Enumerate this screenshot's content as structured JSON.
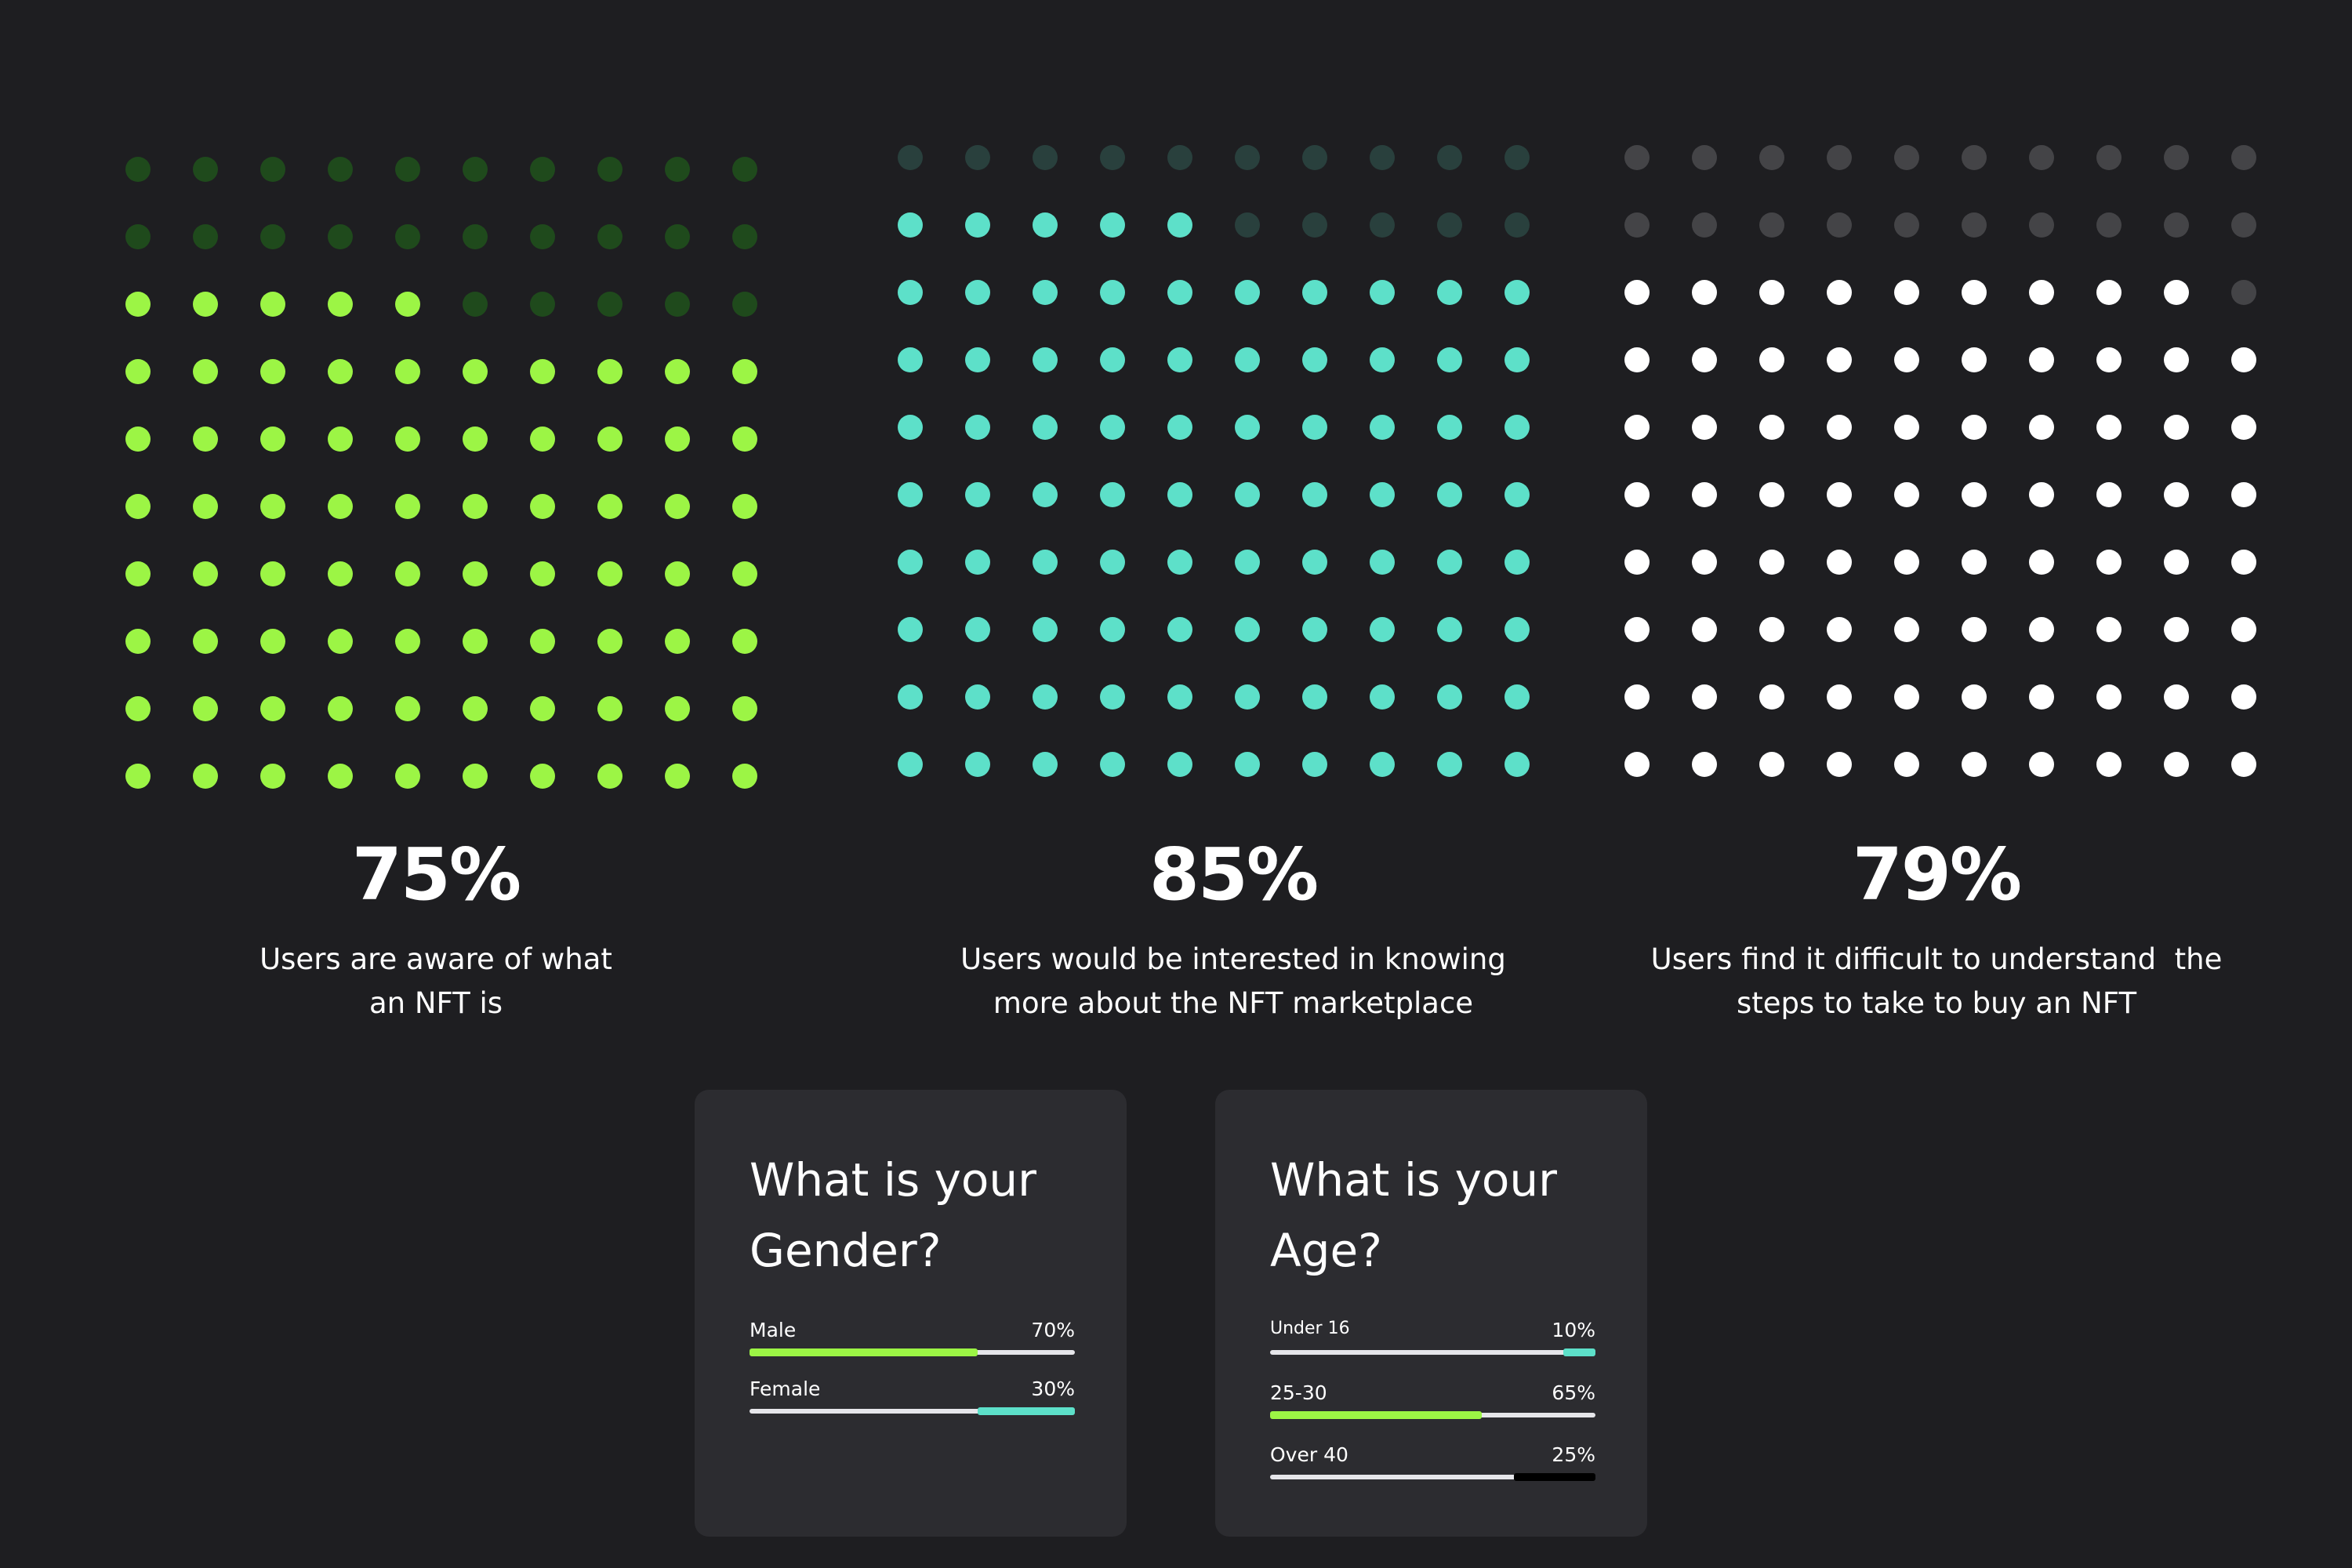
{
  "colors": {
    "background": "#1e1e21",
    "card": "#2c2c30",
    "green": "#9cf545",
    "teal": "#5de0c9",
    "white": "#ffffff",
    "track": "#e6e6ea",
    "black": "#000000"
  },
  "chart_data": [
    {
      "type": "waffle",
      "rows": 10,
      "cols": 10,
      "value": 75,
      "label": "75%",
      "description": "Users are aware of what an NFT is",
      "description_lines": [
        "Users are aware of what",
        "an NFT is"
      ],
      "color": "#9cf545",
      "inactive_color": "#1f4a1c"
    },
    {
      "type": "waffle",
      "rows": 10,
      "cols": 10,
      "value": 85,
      "label": "85%",
      "description": "Users would be interested in knowing more about the NFT marketplace",
      "description_lines": [
        "Users would be interested in knowing",
        "more about the NFT marketplace"
      ],
      "color": "#5de0c9",
      "inactive_color": "#29403d"
    },
    {
      "type": "waffle",
      "rows": 10,
      "cols": 10,
      "value": 79,
      "label": "79%",
      "description": "Users find it difficult to understand the steps to take to buy an NFT",
      "description_lines": [
        "Users find it difficult to understand  the",
        "steps to take to buy an NFT"
      ],
      "color": "#ffffff",
      "inactive_color": "#444447"
    }
  ],
  "survey": {
    "gender": {
      "title": "What is your Gender?",
      "items": [
        {
          "label": "Male",
          "pct_label": "70%",
          "value": 70,
          "color": "#9cf545",
          "fill_from": "left"
        },
        {
          "label": "Female",
          "pct_label": "30%",
          "value": 30,
          "color": "#5de0c9",
          "fill_from": "right"
        }
      ]
    },
    "age": {
      "title": "What is your Age?",
      "items": [
        {
          "label": "Under 16",
          "pct_label": "10%",
          "value": 10,
          "color": "#5de0c9",
          "fill_from": "right"
        },
        {
          "label": "25-30",
          "pct_label": "65%",
          "value": 65,
          "color": "#9cf545",
          "fill_from": "left"
        },
        {
          "label": "Over 40",
          "pct_label": "25%",
          "value": 25,
          "color": "#000000",
          "fill_from": "right"
        }
      ]
    }
  }
}
